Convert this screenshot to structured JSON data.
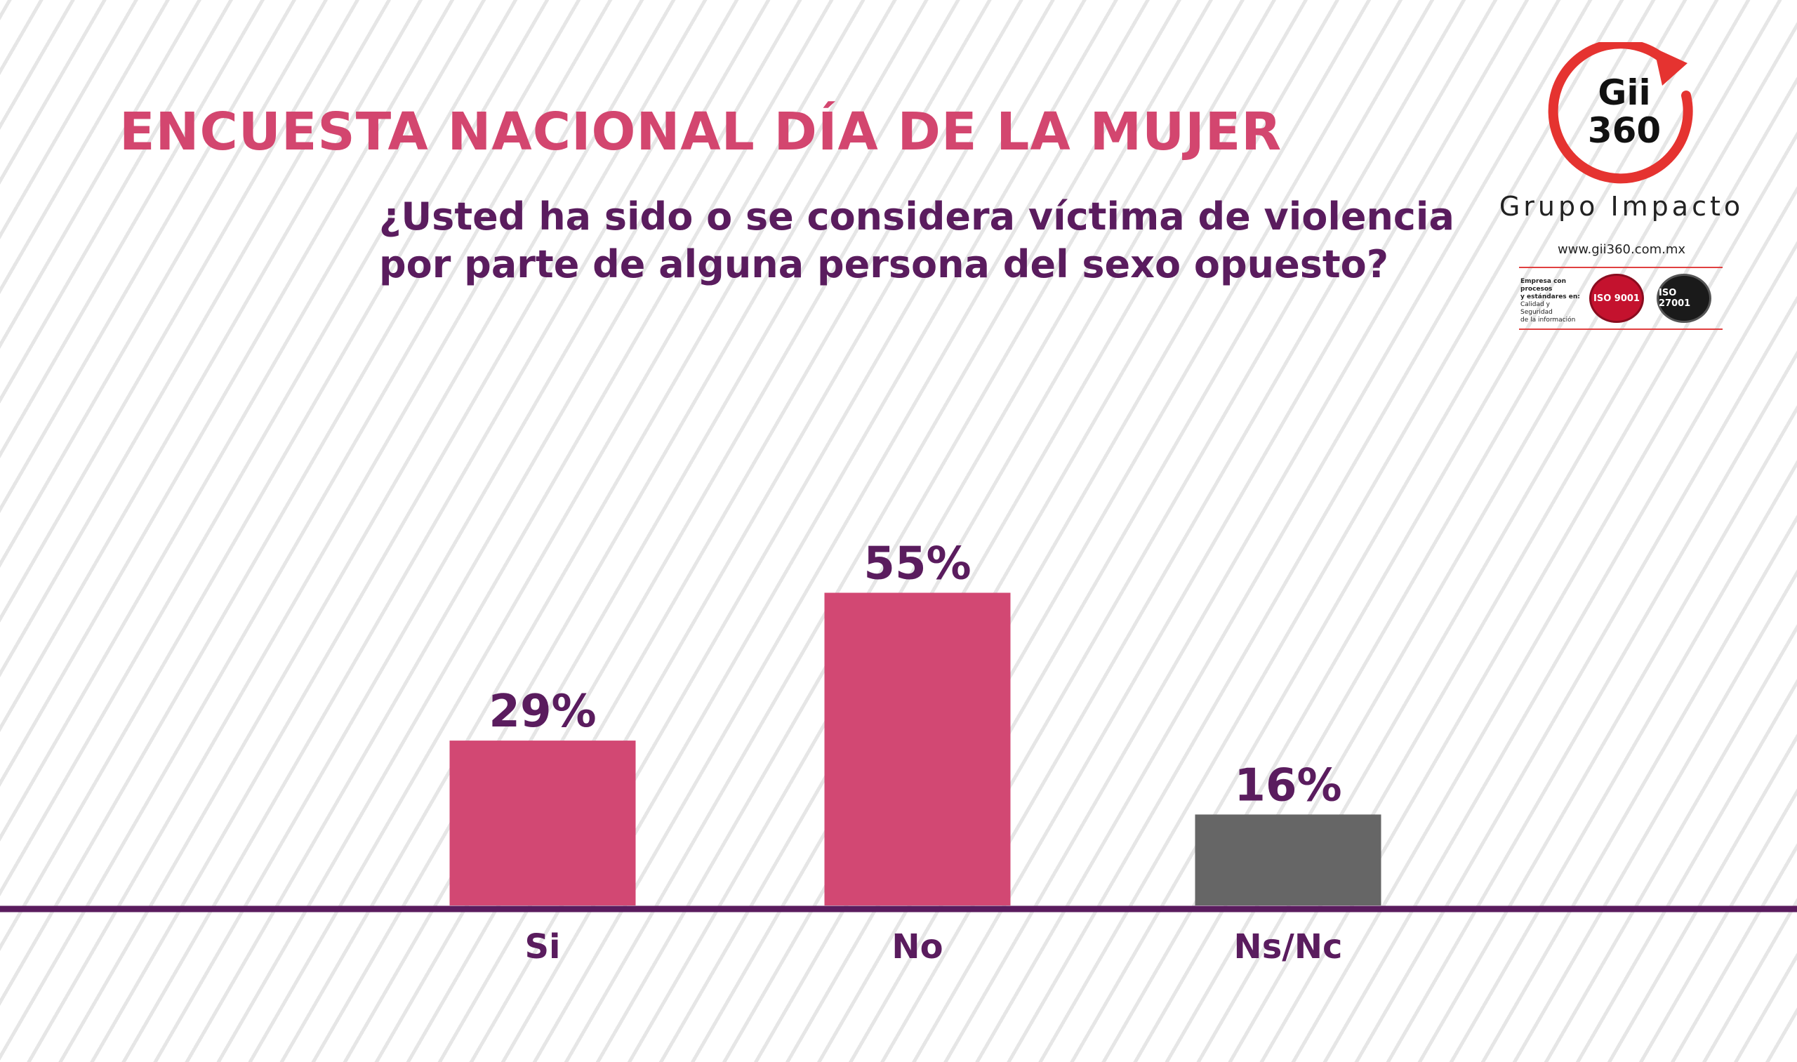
{
  "header": {
    "title": "ENCUESTA NACIONAL DÍA DE LA MUJER",
    "question_line1": "¿Usted ha sido o se considera víctima de violencia",
    "question_line2": "por parte de alguna persona del sexo opuesto?"
  },
  "brand": {
    "logo_line1": "Gii",
    "logo_line2": "360",
    "company": "Grupo Impacto",
    "url": "www.gii360.com.mx",
    "cert_line1": "Empresa con procesos",
    "cert_line2": "y estándares en:",
    "cert_line3": "Calidad y Seguridad",
    "cert_line4": "de la información",
    "badge1": "ISO 9001",
    "badge2": "ISO 27001"
  },
  "colors": {
    "title": "#d3466f",
    "question": "#5a1c5e",
    "bar_primary": "#d24873",
    "bar_secondary": "#666666",
    "baseline": "#5a1c5e",
    "logo_accent": "#e53330"
  },
  "chart_data": {
    "type": "bar",
    "categories": [
      "Si",
      "No",
      "Ns/Nc"
    ],
    "values": [
      29,
      55,
      16
    ],
    "value_labels": [
      "29%",
      "55%",
      "16%"
    ],
    "bar_colors": [
      "#d24873",
      "#d24873",
      "#666666"
    ],
    "ylim": [
      0,
      70
    ],
    "grid": false,
    "legend": "none"
  }
}
